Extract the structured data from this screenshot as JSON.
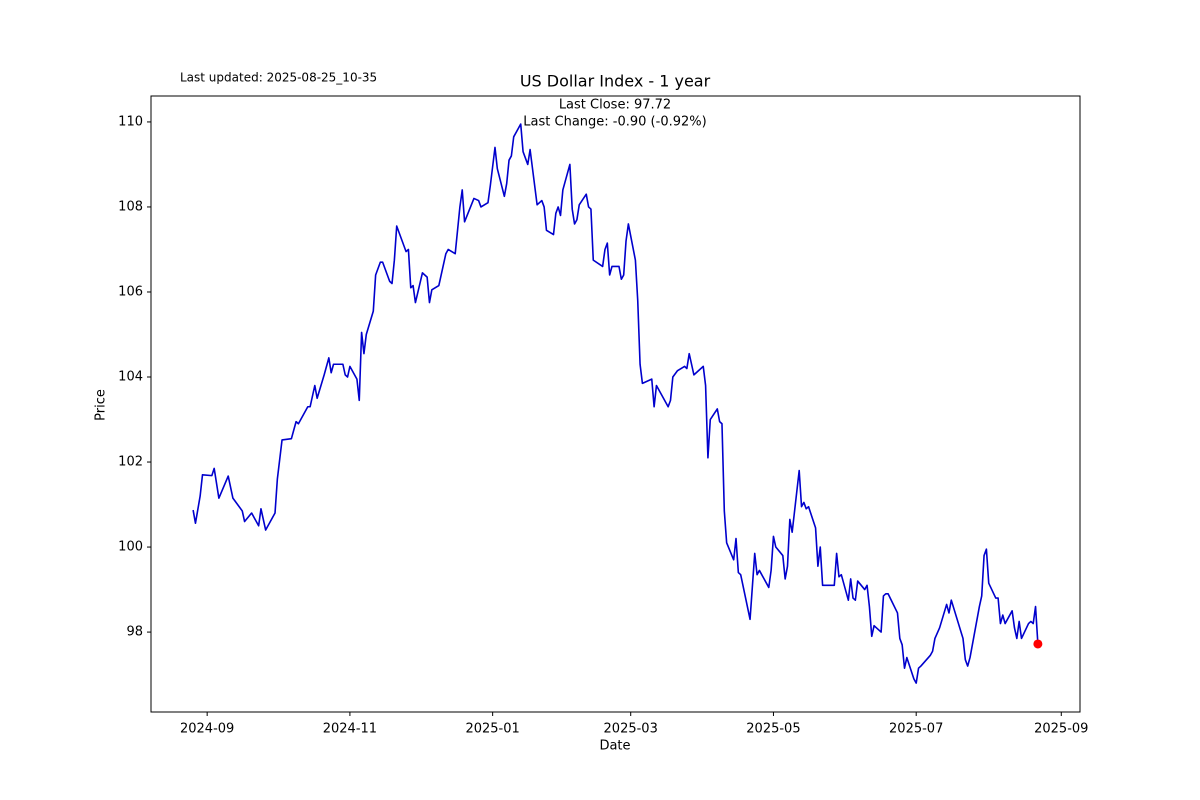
{
  "chart_data": {
    "type": "line",
    "title": "US Dollar Index - 1 year",
    "annotations": [
      "Last updated: 2025-08-25_10-35",
      "Last Close: 97.72",
      "Last Change: -0.90 (-0.92%)"
    ],
    "xlabel": "Date",
    "ylabel": "Price",
    "xlim": [
      "2024-08-08",
      "2025-09-09"
    ],
    "xticks": [
      "2024-09",
      "2024-11",
      "2025-01",
      "2025-03",
      "2025-05",
      "2025-07",
      "2025-09"
    ],
    "ylim": [
      96.12,
      110.61
    ],
    "yticks": [
      98,
      100,
      102,
      104,
      106,
      108,
      110
    ],
    "grid": false,
    "last_marker_color": "#ff0000",
    "x": [
      "2024-08-26",
      "2024-08-27",
      "2024-08-29",
      "2024-08-30",
      "2024-09-03",
      "2024-09-04",
      "2024-09-06",
      "2024-09-10",
      "2024-09-12",
      "2024-09-16",
      "2024-09-17",
      "2024-09-20",
      "2024-09-23",
      "2024-09-24",
      "2024-09-26",
      "2024-09-30",
      "2024-10-01",
      "2024-10-03",
      "2024-10-07",
      "2024-10-09",
      "2024-10-10",
      "2024-10-14",
      "2024-10-15",
      "2024-10-17",
      "2024-10-18",
      "2024-10-21",
      "2024-10-23",
      "2024-10-24",
      "2024-10-25",
      "2024-10-29",
      "2024-10-30",
      "2024-10-31",
      "2024-11-01",
      "2024-11-04",
      "2024-11-05",
      "2024-11-06",
      "2024-11-07",
      "2024-11-08",
      "2024-11-11",
      "2024-11-12",
      "2024-11-14",
      "2024-11-15",
      "2024-11-18",
      "2024-11-19",
      "2024-11-20",
      "2024-11-21",
      "2024-11-25",
      "2024-11-26",
      "2024-11-27",
      "2024-11-28",
      "2024-11-29",
      "2024-12-02",
      "2024-12-04",
      "2024-12-05",
      "2024-12-06",
      "2024-12-09",
      "2024-12-12",
      "2024-12-13",
      "2024-12-16",
      "2024-12-18",
      "2024-12-19",
      "2024-12-20",
      "2024-12-24",
      "2024-12-26",
      "2024-12-27",
      "2024-12-30",
      "2024-12-31",
      "2025-01-02",
      "2025-01-03",
      "2025-01-06",
      "2025-01-07",
      "2025-01-08",
      "2025-01-09",
      "2025-01-10",
      "2025-01-13",
      "2025-01-14",
      "2025-01-16",
      "2025-01-17",
      "2025-01-20",
      "2025-01-22",
      "2025-01-23",
      "2025-01-24",
      "2025-01-27",
      "2025-01-28",
      "2025-01-29",
      "2025-01-30",
      "2025-01-31",
      "2025-02-03",
      "2025-02-04",
      "2025-02-05",
      "2025-02-06",
      "2025-02-07",
      "2025-02-10",
      "2025-02-11",
      "2025-02-12",
      "2025-02-13",
      "2025-02-17",
      "2025-02-18",
      "2025-02-19",
      "2025-02-20",
      "2025-02-21",
      "2025-02-24",
      "2025-02-25",
      "2025-02-26",
      "2025-02-27",
      "2025-02-28",
      "2025-03-03",
      "2025-03-04",
      "2025-03-05",
      "2025-03-06",
      "2025-03-10",
      "2025-03-11",
      "2025-03-12",
      "2025-03-14",
      "2025-03-17",
      "2025-03-18",
      "2025-03-19",
      "2025-03-21",
      "2025-03-24",
      "2025-03-25",
      "2025-03-26",
      "2025-03-28",
      "2025-04-01",
      "2025-04-02",
      "2025-04-03",
      "2025-04-04",
      "2025-04-07",
      "2025-04-08",
      "2025-04-09",
      "2025-04-10",
      "2025-04-11",
      "2025-04-14",
      "2025-04-15",
      "2025-04-16",
      "2025-04-17",
      "2025-04-21",
      "2025-04-23",
      "2025-04-24",
      "2025-04-25",
      "2025-04-29",
      "2025-04-30",
      "2025-05-01",
      "2025-05-02",
      "2025-05-05",
      "2025-05-06",
      "2025-05-07",
      "2025-05-08",
      "2025-05-09",
      "2025-05-12",
      "2025-05-13",
      "2025-05-14",
      "2025-05-15",
      "2025-05-16",
      "2025-05-19",
      "2025-05-20",
      "2025-05-21",
      "2025-05-22",
      "2025-05-27",
      "2025-05-28",
      "2025-05-29",
      "2025-05-30",
      "2025-06-02",
      "2025-06-03",
      "2025-06-04",
      "2025-06-05",
      "2025-06-06",
      "2025-06-09",
      "2025-06-10",
      "2025-06-11",
      "2025-06-12",
      "2025-06-13",
      "2025-06-16",
      "2025-06-17",
      "2025-06-18",
      "2025-06-19",
      "2025-06-23",
      "2025-06-24",
      "2025-06-25",
      "2025-06-26",
      "2025-06-27",
      "2025-06-30",
      "2025-07-01",
      "2025-07-02",
      "2025-07-03",
      "2025-07-07",
      "2025-07-08",
      "2025-07-09",
      "2025-07-11",
      "2025-07-14",
      "2025-07-15",
      "2025-07-16",
      "2025-07-21",
      "2025-07-22",
      "2025-07-23",
      "2025-07-24",
      "2025-07-28",
      "2025-07-29",
      "2025-07-30",
      "2025-07-31",
      "2025-08-01",
      "2025-08-04",
      "2025-08-05",
      "2025-08-06",
      "2025-08-07",
      "2025-08-08",
      "2025-08-11",
      "2025-08-12",
      "2025-08-13",
      "2025-08-14",
      "2025-08-15",
      "2025-08-18",
      "2025-08-19",
      "2025-08-20",
      "2025-08-21",
      "2025-08-22"
    ],
    "series": [
      {
        "color": "#0000cd",
        "values": [
          100.87,
          100.56,
          101.2,
          101.7,
          101.68,
          101.85,
          101.15,
          101.67,
          101.15,
          100.85,
          100.6,
          100.8,
          100.5,
          100.9,
          100.4,
          100.8,
          101.6,
          102.52,
          102.55,
          102.95,
          102.9,
          103.3,
          103.3,
          103.8,
          103.5,
          104.05,
          104.45,
          104.1,
          104.3,
          104.3,
          104.05,
          104.0,
          104.25,
          103.95,
          103.45,
          105.05,
          104.55,
          105.0,
          105.55,
          106.4,
          106.7,
          106.7,
          106.25,
          106.2,
          106.75,
          107.55,
          106.95,
          107.0,
          106.1,
          106.15,
          105.75,
          106.45,
          106.35,
          105.75,
          106.05,
          106.15,
          106.9,
          107.0,
          106.9,
          108.0,
          108.4,
          107.65,
          108.2,
          108.15,
          108.0,
          108.1,
          108.5,
          109.4,
          108.9,
          108.25,
          108.55,
          109.1,
          109.2,
          109.65,
          109.95,
          109.3,
          109.0,
          109.35,
          108.05,
          108.15,
          108.0,
          107.45,
          107.35,
          107.85,
          108.0,
          107.8,
          108.4,
          109.0,
          107.95,
          107.6,
          107.7,
          108.05,
          108.3,
          108.0,
          107.95,
          106.75,
          106.6,
          107.0,
          107.15,
          106.4,
          106.6,
          106.6,
          106.3,
          106.4,
          107.2,
          107.6,
          106.75,
          105.8,
          104.3,
          103.85,
          103.95,
          103.3,
          103.8,
          103.6,
          103.3,
          103.45,
          104.0,
          104.15,
          104.25,
          104.2,
          104.55,
          104.05,
          104.25,
          103.8,
          102.1,
          103.0,
          103.25,
          102.95,
          102.9,
          100.85,
          100.1,
          99.7,
          100.2,
          99.4,
          99.35,
          98.3,
          99.85,
          99.35,
          99.45,
          99.05,
          99.45,
          100.25,
          100.0,
          99.8,
          99.25,
          99.55,
          100.65,
          100.35,
          101.8,
          100.95,
          101.05,
          100.9,
          100.95,
          100.45,
          99.55,
          100.0,
          99.1,
          99.1,
          99.85,
          99.3,
          99.35,
          98.75,
          99.25,
          98.8,
          98.75,
          99.2,
          99.0,
          99.1,
          98.6,
          97.9,
          98.15,
          98.0,
          98.85,
          98.9,
          98.9,
          98.45,
          97.85,
          97.7,
          97.15,
          97.4,
          96.9,
          96.8,
          97.15,
          97.2,
          97.45,
          97.55,
          97.85,
          98.1,
          98.65,
          98.45,
          98.75,
          97.85,
          97.35,
          97.2,
          97.4,
          98.6,
          98.85,
          99.8,
          99.95,
          99.15,
          98.8,
          98.8,
          98.2,
          98.4,
          98.2,
          98.5,
          98.1,
          97.85,
          98.25,
          97.85,
          98.2,
          98.25,
          98.2,
          98.6,
          97.72
        ]
      }
    ]
  }
}
